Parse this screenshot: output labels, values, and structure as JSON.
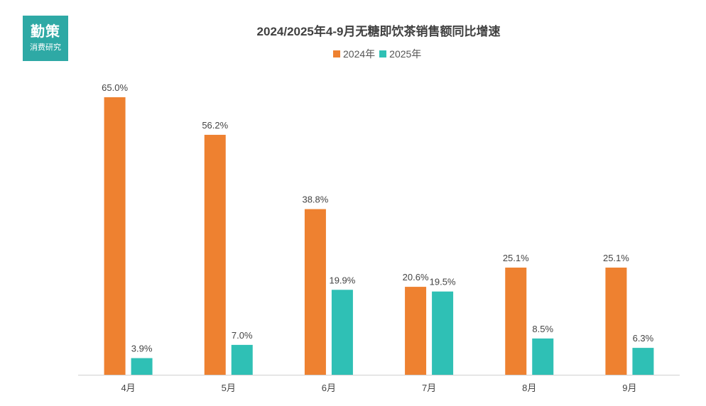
{
  "logo": {
    "main": "勤策",
    "sub": "消费研究"
  },
  "colors": {
    "s2024": "#ee8130",
    "s2025": "#2fc0b5",
    "logo_bg": "#2ea9a5"
  },
  "chart_data": {
    "type": "bar",
    "title": "2024/2025年4-9月无糖即饮茶销售额同比增速",
    "categories": [
      "4月",
      "5月",
      "6月",
      "7月",
      "8月",
      "9月"
    ],
    "series": [
      {
        "name": "2024年",
        "values": [
          65.0,
          56.2,
          38.8,
          20.6,
          25.1,
          25.1
        ],
        "labels": [
          "65.0%",
          "56.2%",
          "38.8%",
          "20.6%",
          "25.1%",
          "25.1%"
        ]
      },
      {
        "name": "2025年",
        "values": [
          3.9,
          7.0,
          19.9,
          19.5,
          8.5,
          6.3
        ],
        "labels": [
          "3.9%",
          "7.0%",
          "19.9%",
          "19.5%",
          "8.5%",
          "6.3%"
        ]
      }
    ],
    "unit": "%",
    "legend_position": "top-center",
    "grid": false,
    "ylim": [
      0,
      70
    ]
  }
}
